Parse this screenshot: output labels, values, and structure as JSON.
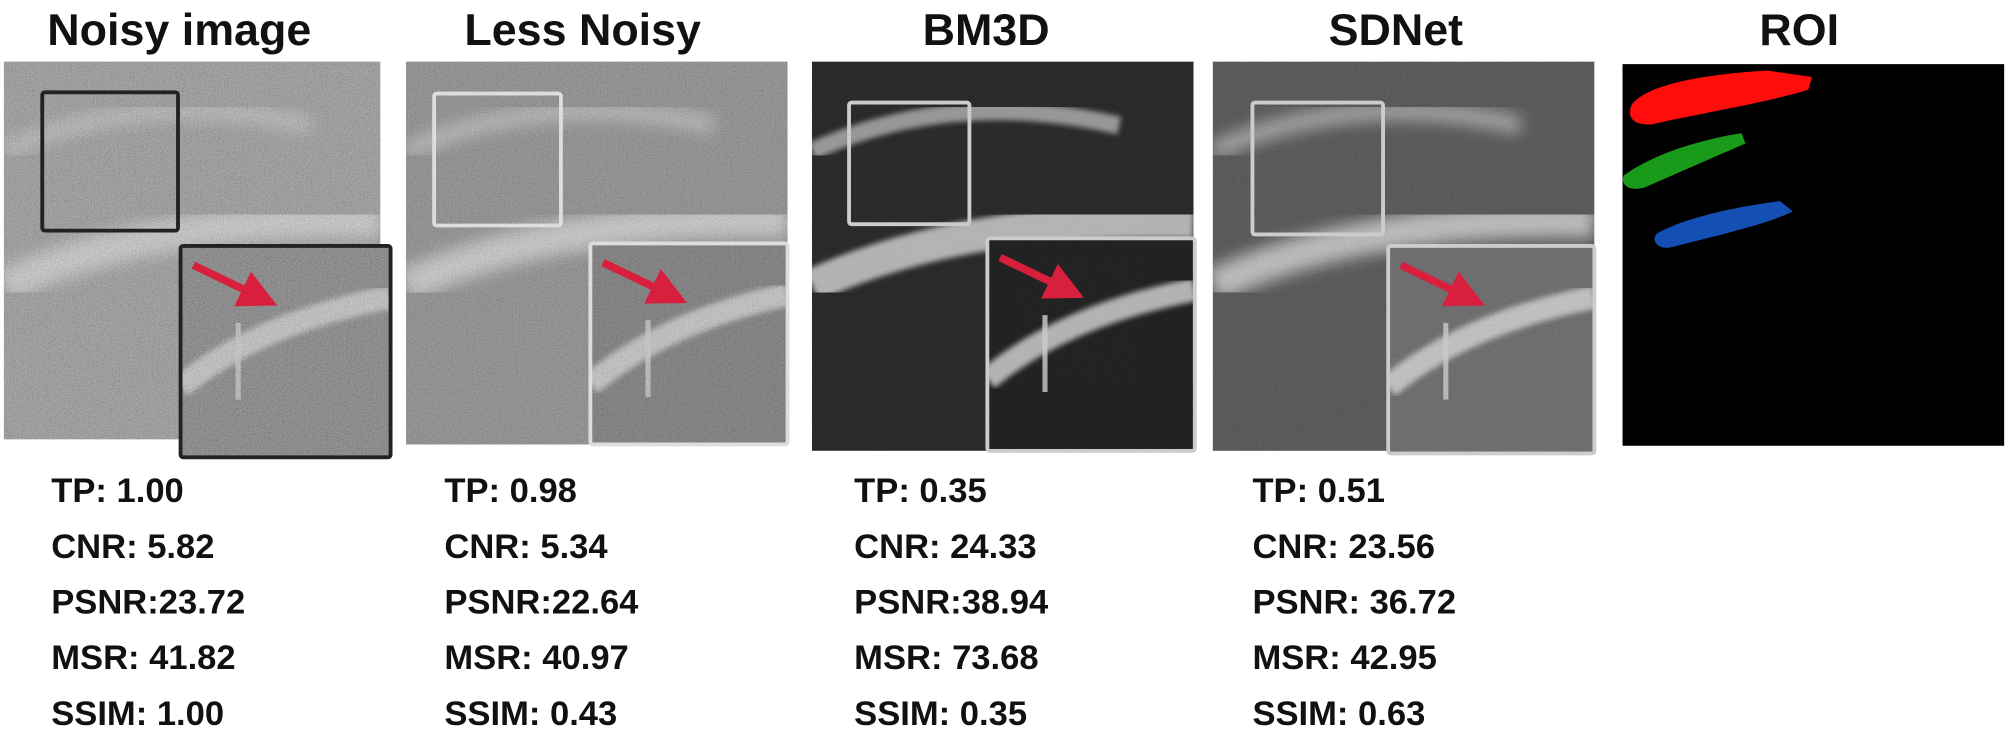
{
  "panels": [
    {
      "title": "Noisy image",
      "metrics": [
        "TP: 1.00",
        "CNR: 5.82",
        "PSNR:23.72",
        "MSR: 41.82",
        "SSIM: 1.00"
      ]
    },
    {
      "title": "Less Noisy",
      "metrics": [
        "TP: 0.98",
        "CNR: 5.34",
        "PSNR:22.64",
        "MSR: 40.97",
        "SSIM: 0.43"
      ]
    },
    {
      "title": "BM3D",
      "metrics": [
        "TP: 0.35",
        "CNR: 24.33",
        "PSNR:38.94",
        "MSR: 73.68",
        "SSIM: 0.35"
      ]
    },
    {
      "title": "SDNet",
      "metrics": [
        "TP: 0.51",
        "CNR: 23.56",
        "PSNR: 36.72",
        "MSR: 42.95",
        "SSIM: 0.63"
      ]
    },
    {
      "title": "ROI"
    }
  ]
}
